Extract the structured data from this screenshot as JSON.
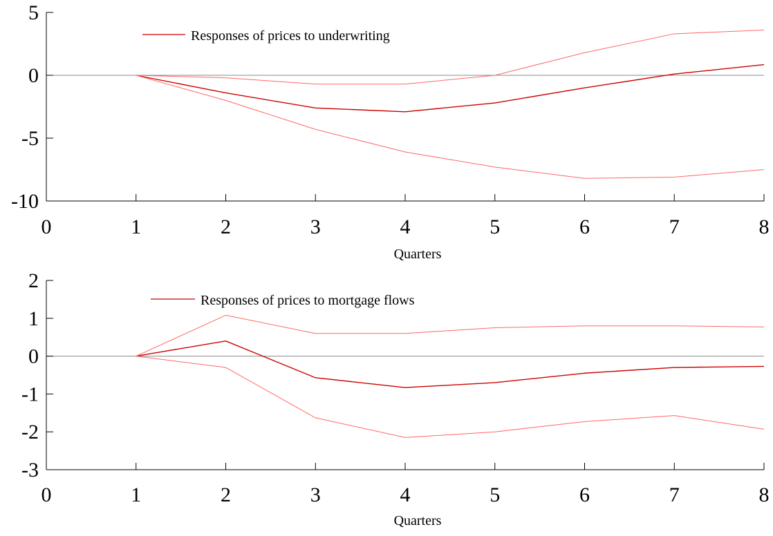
{
  "chart_data": [
    {
      "type": "line",
      "xlabel": "Quarters",
      "ylabel": "",
      "xlim": [
        0,
        8
      ],
      "ylim": [
        -10,
        5
      ],
      "xticks": [
        "0",
        "1",
        "2",
        "3",
        "4",
        "5",
        "6",
        "7",
        "8"
      ],
      "yticks": [
        "5",
        "0",
        "-5",
        "-10"
      ],
      "grid": false,
      "zero_line": true,
      "legend": {
        "text": "Responses of prices to underwriting",
        "placement": "top-left"
      },
      "line_color": "#cc0000",
      "band_color": "#ff6666",
      "x": [
        1,
        2,
        3,
        4,
        5,
        6,
        7,
        8
      ],
      "series": [
        {
          "name": "Responses of prices to underwriting",
          "role": "point",
          "values": [
            0,
            -1.4,
            -2.6,
            -2.9,
            -2.2,
            -1.0,
            0.1,
            0.85
          ]
        },
        {
          "role": "upper",
          "values": [
            0,
            -0.2,
            -0.7,
            -0.7,
            0.0,
            1.8,
            3.3,
            3.6
          ]
        },
        {
          "role": "lower",
          "values": [
            0,
            -2.0,
            -4.3,
            -6.1,
            -7.3,
            -8.2,
            -8.1,
            -7.5
          ]
        }
      ]
    },
    {
      "type": "line",
      "xlabel": "Quarters",
      "ylabel": "",
      "xlim": [
        0,
        8
      ],
      "ylim": [
        -3,
        2
      ],
      "xticks": [
        "0",
        "1",
        "2",
        "3",
        "4",
        "5",
        "6",
        "7",
        "8"
      ],
      "yticks": [
        "2",
        "1",
        "0",
        "-1",
        "-2",
        "-3"
      ],
      "grid": false,
      "zero_line": true,
      "legend": {
        "text": "Responses of prices to mortgage flows",
        "placement": "top-left"
      },
      "line_color": "#cc0000",
      "band_color": "#ff6666",
      "x": [
        1,
        2,
        3,
        4,
        5,
        6,
        7,
        8
      ],
      "series": [
        {
          "name": "Responses of prices to mortgage flows",
          "role": "point",
          "values": [
            0,
            0.4,
            -0.57,
            -0.83,
            -0.7,
            -0.45,
            -0.3,
            -0.27
          ]
        },
        {
          "role": "upper",
          "values": [
            0,
            1.08,
            0.6,
            0.6,
            0.75,
            0.8,
            0.8,
            0.77
          ]
        },
        {
          "role": "lower",
          "values": [
            0,
            -0.3,
            -1.63,
            -2.15,
            -2.0,
            -1.73,
            -1.57,
            -1.93
          ]
        }
      ]
    }
  ]
}
